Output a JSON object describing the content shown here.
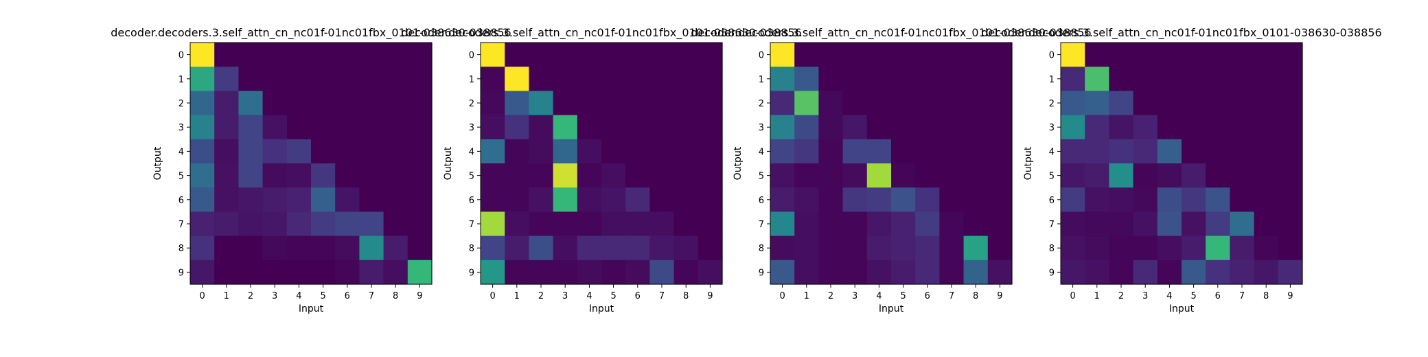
{
  "figure": {
    "colormap": "viridis",
    "value_range": [
      0,
      1
    ]
  },
  "chart_data": [
    {
      "type": "heatmap",
      "title": "decoder.decoders.3.self_attn_cn_nc01f-01nc01fbx_0101-038630-038856",
      "xlabel": "Input",
      "ylabel": "Output",
      "x_ticks": [
        "0",
        "1",
        "2",
        "3",
        "4",
        "5",
        "6",
        "7",
        "8",
        "9"
      ],
      "y_ticks": [
        "0",
        "1",
        "2",
        "3",
        "4",
        "5",
        "6",
        "7",
        "8",
        "9"
      ],
      "values": [
        [
          1.0,
          0,
          0,
          0,
          0,
          0,
          0,
          0,
          0,
          0
        ],
        [
          0.7,
          0.22,
          0,
          0,
          0,
          0,
          0,
          0,
          0,
          0
        ],
        [
          0.42,
          0.1,
          0.45,
          0,
          0,
          0,
          0,
          0,
          0,
          0
        ],
        [
          0.55,
          0.1,
          0.25,
          0.06,
          0,
          0,
          0,
          0,
          0,
          0
        ],
        [
          0.3,
          0.05,
          0.25,
          0.18,
          0.22,
          0,
          0,
          0,
          0,
          0
        ],
        [
          0.45,
          0.06,
          0.25,
          0.04,
          0.05,
          0.2,
          0,
          0,
          0,
          0
        ],
        [
          0.35,
          0.06,
          0.08,
          0.1,
          0.12,
          0.38,
          0.07,
          0,
          0,
          0
        ],
        [
          0.12,
          0.1,
          0.07,
          0.08,
          0.15,
          0.22,
          0.25,
          0.25,
          0,
          0
        ],
        [
          0.18,
          0,
          0,
          0.03,
          0.02,
          0.02,
          0.04,
          0.6,
          0.1,
          0
        ],
        [
          0.08,
          0,
          0,
          0,
          0,
          0,
          0.02,
          0.1,
          0.05,
          0.75
        ]
      ]
    },
    {
      "type": "heatmap",
      "title": "decoder.decoders.3.self_attn_cn_nc01f-01nc01fbx_0101-038630-038856",
      "xlabel": "Input",
      "ylabel": "Output",
      "x_ticks": [
        "0",
        "1",
        "2",
        "3",
        "4",
        "5",
        "6",
        "7",
        "8",
        "9"
      ],
      "y_ticks": [
        "0",
        "1",
        "2",
        "3",
        "4",
        "5",
        "6",
        "7",
        "8",
        "9"
      ],
      "values": [
        [
          1.0,
          0,
          0,
          0,
          0,
          0,
          0,
          0,
          0,
          0
        ],
        [
          0.02,
          1.0,
          0,
          0,
          0,
          0,
          0,
          0,
          0,
          0
        ],
        [
          0.03,
          0.35,
          0.55,
          0,
          0,
          0,
          0,
          0,
          0,
          0
        ],
        [
          0.05,
          0.18,
          0.04,
          0.75,
          0,
          0,
          0,
          0,
          0,
          0
        ],
        [
          0.45,
          0.02,
          0.04,
          0.42,
          0.05,
          0,
          0,
          0,
          0,
          0
        ],
        [
          0.02,
          0.02,
          0.02,
          0.95,
          0.02,
          0.05,
          0,
          0,
          0,
          0
        ],
        [
          0.02,
          0.02,
          0.06,
          0.75,
          0.05,
          0.07,
          0.15,
          0,
          0,
          0
        ],
        [
          0.9,
          0.05,
          0.02,
          0.02,
          0.02,
          0.05,
          0.05,
          0.05,
          0,
          0
        ],
        [
          0.25,
          0.1,
          0.3,
          0.05,
          0.15,
          0.15,
          0.15,
          0.08,
          0.06,
          0
        ],
        [
          0.65,
          0.02,
          0.02,
          0.02,
          0.04,
          0.02,
          0.04,
          0.28,
          0.02,
          0.05
        ]
      ]
    },
    {
      "type": "heatmap",
      "title": "decoder.decoders.3.self_attn_cn_nc01f-01nc01fbx_0101-038630-038856",
      "xlabel": "Input",
      "ylabel": "Output",
      "x_ticks": [
        "0",
        "1",
        "2",
        "3",
        "4",
        "5",
        "6",
        "7",
        "8",
        "9"
      ],
      "y_ticks": [
        "0",
        "1",
        "2",
        "3",
        "4",
        "5",
        "6",
        "7",
        "8",
        "9"
      ],
      "values": [
        [
          1.0,
          0,
          0,
          0,
          0,
          0,
          0,
          0,
          0,
          0
        ],
        [
          0.55,
          0.35,
          0,
          0,
          0,
          0,
          0,
          0,
          0,
          0
        ],
        [
          0.15,
          0.8,
          0.03,
          0,
          0,
          0,
          0,
          0,
          0,
          0
        ],
        [
          0.55,
          0.28,
          0.03,
          0.08,
          0,
          0,
          0,
          0,
          0,
          0
        ],
        [
          0.25,
          0.2,
          0.02,
          0.25,
          0.25,
          0,
          0,
          0,
          0,
          0
        ],
        [
          0.06,
          0.02,
          0.02,
          0.04,
          0.9,
          0.02,
          0,
          0,
          0,
          0
        ],
        [
          0.1,
          0.06,
          0.02,
          0.2,
          0.22,
          0.32,
          0.18,
          0,
          0,
          0
        ],
        [
          0.58,
          0.05,
          0.02,
          0.02,
          0.08,
          0.12,
          0.22,
          0.02,
          0,
          0
        ],
        [
          0.04,
          0.05,
          0.02,
          0.02,
          0.1,
          0.12,
          0.15,
          0.02,
          0.68,
          0
        ],
        [
          0.35,
          0.05,
          0.02,
          0.02,
          0.06,
          0.1,
          0.15,
          0.02,
          0.4,
          0.06
        ]
      ]
    },
    {
      "type": "heatmap",
      "title": "decoder.decoders.3.self_attn_cn_nc01f-01nc01fbx_0101-038630-038856",
      "xlabel": "Input",
      "ylabel": "Output",
      "x_ticks": [
        "0",
        "1",
        "2",
        "3",
        "4",
        "5",
        "6",
        "7",
        "8",
        "9"
      ],
      "y_ticks": [
        "0",
        "1",
        "2",
        "3",
        "4",
        "5",
        "6",
        "7",
        "8",
        "9"
      ],
      "values": [
        [
          1.0,
          0,
          0,
          0,
          0,
          0,
          0,
          0,
          0,
          0
        ],
        [
          0.15,
          0.78,
          0,
          0,
          0,
          0,
          0,
          0,
          0,
          0
        ],
        [
          0.35,
          0.38,
          0.25,
          0,
          0,
          0,
          0,
          0,
          0,
          0
        ],
        [
          0.6,
          0.15,
          0.07,
          0.12,
          0,
          0,
          0,
          0,
          0,
          0
        ],
        [
          0.15,
          0.15,
          0.18,
          0.15,
          0.38,
          0,
          0,
          0,
          0,
          0
        ],
        [
          0.08,
          0.1,
          0.62,
          0.02,
          0.04,
          0.1,
          0,
          0,
          0,
          0
        ],
        [
          0.22,
          0.06,
          0.05,
          0.03,
          0.3,
          0.2,
          0.32,
          0,
          0,
          0
        ],
        [
          0.04,
          0.03,
          0.03,
          0.06,
          0.32,
          0.06,
          0.22,
          0.45,
          0,
          0
        ],
        [
          0.06,
          0.04,
          0.02,
          0.02,
          0.05,
          0.1,
          0.75,
          0.1,
          0.02,
          0
        ],
        [
          0.08,
          0.06,
          0.02,
          0.15,
          0.02,
          0.35,
          0.18,
          0.12,
          0.08,
          0.15
        ]
      ]
    }
  ]
}
